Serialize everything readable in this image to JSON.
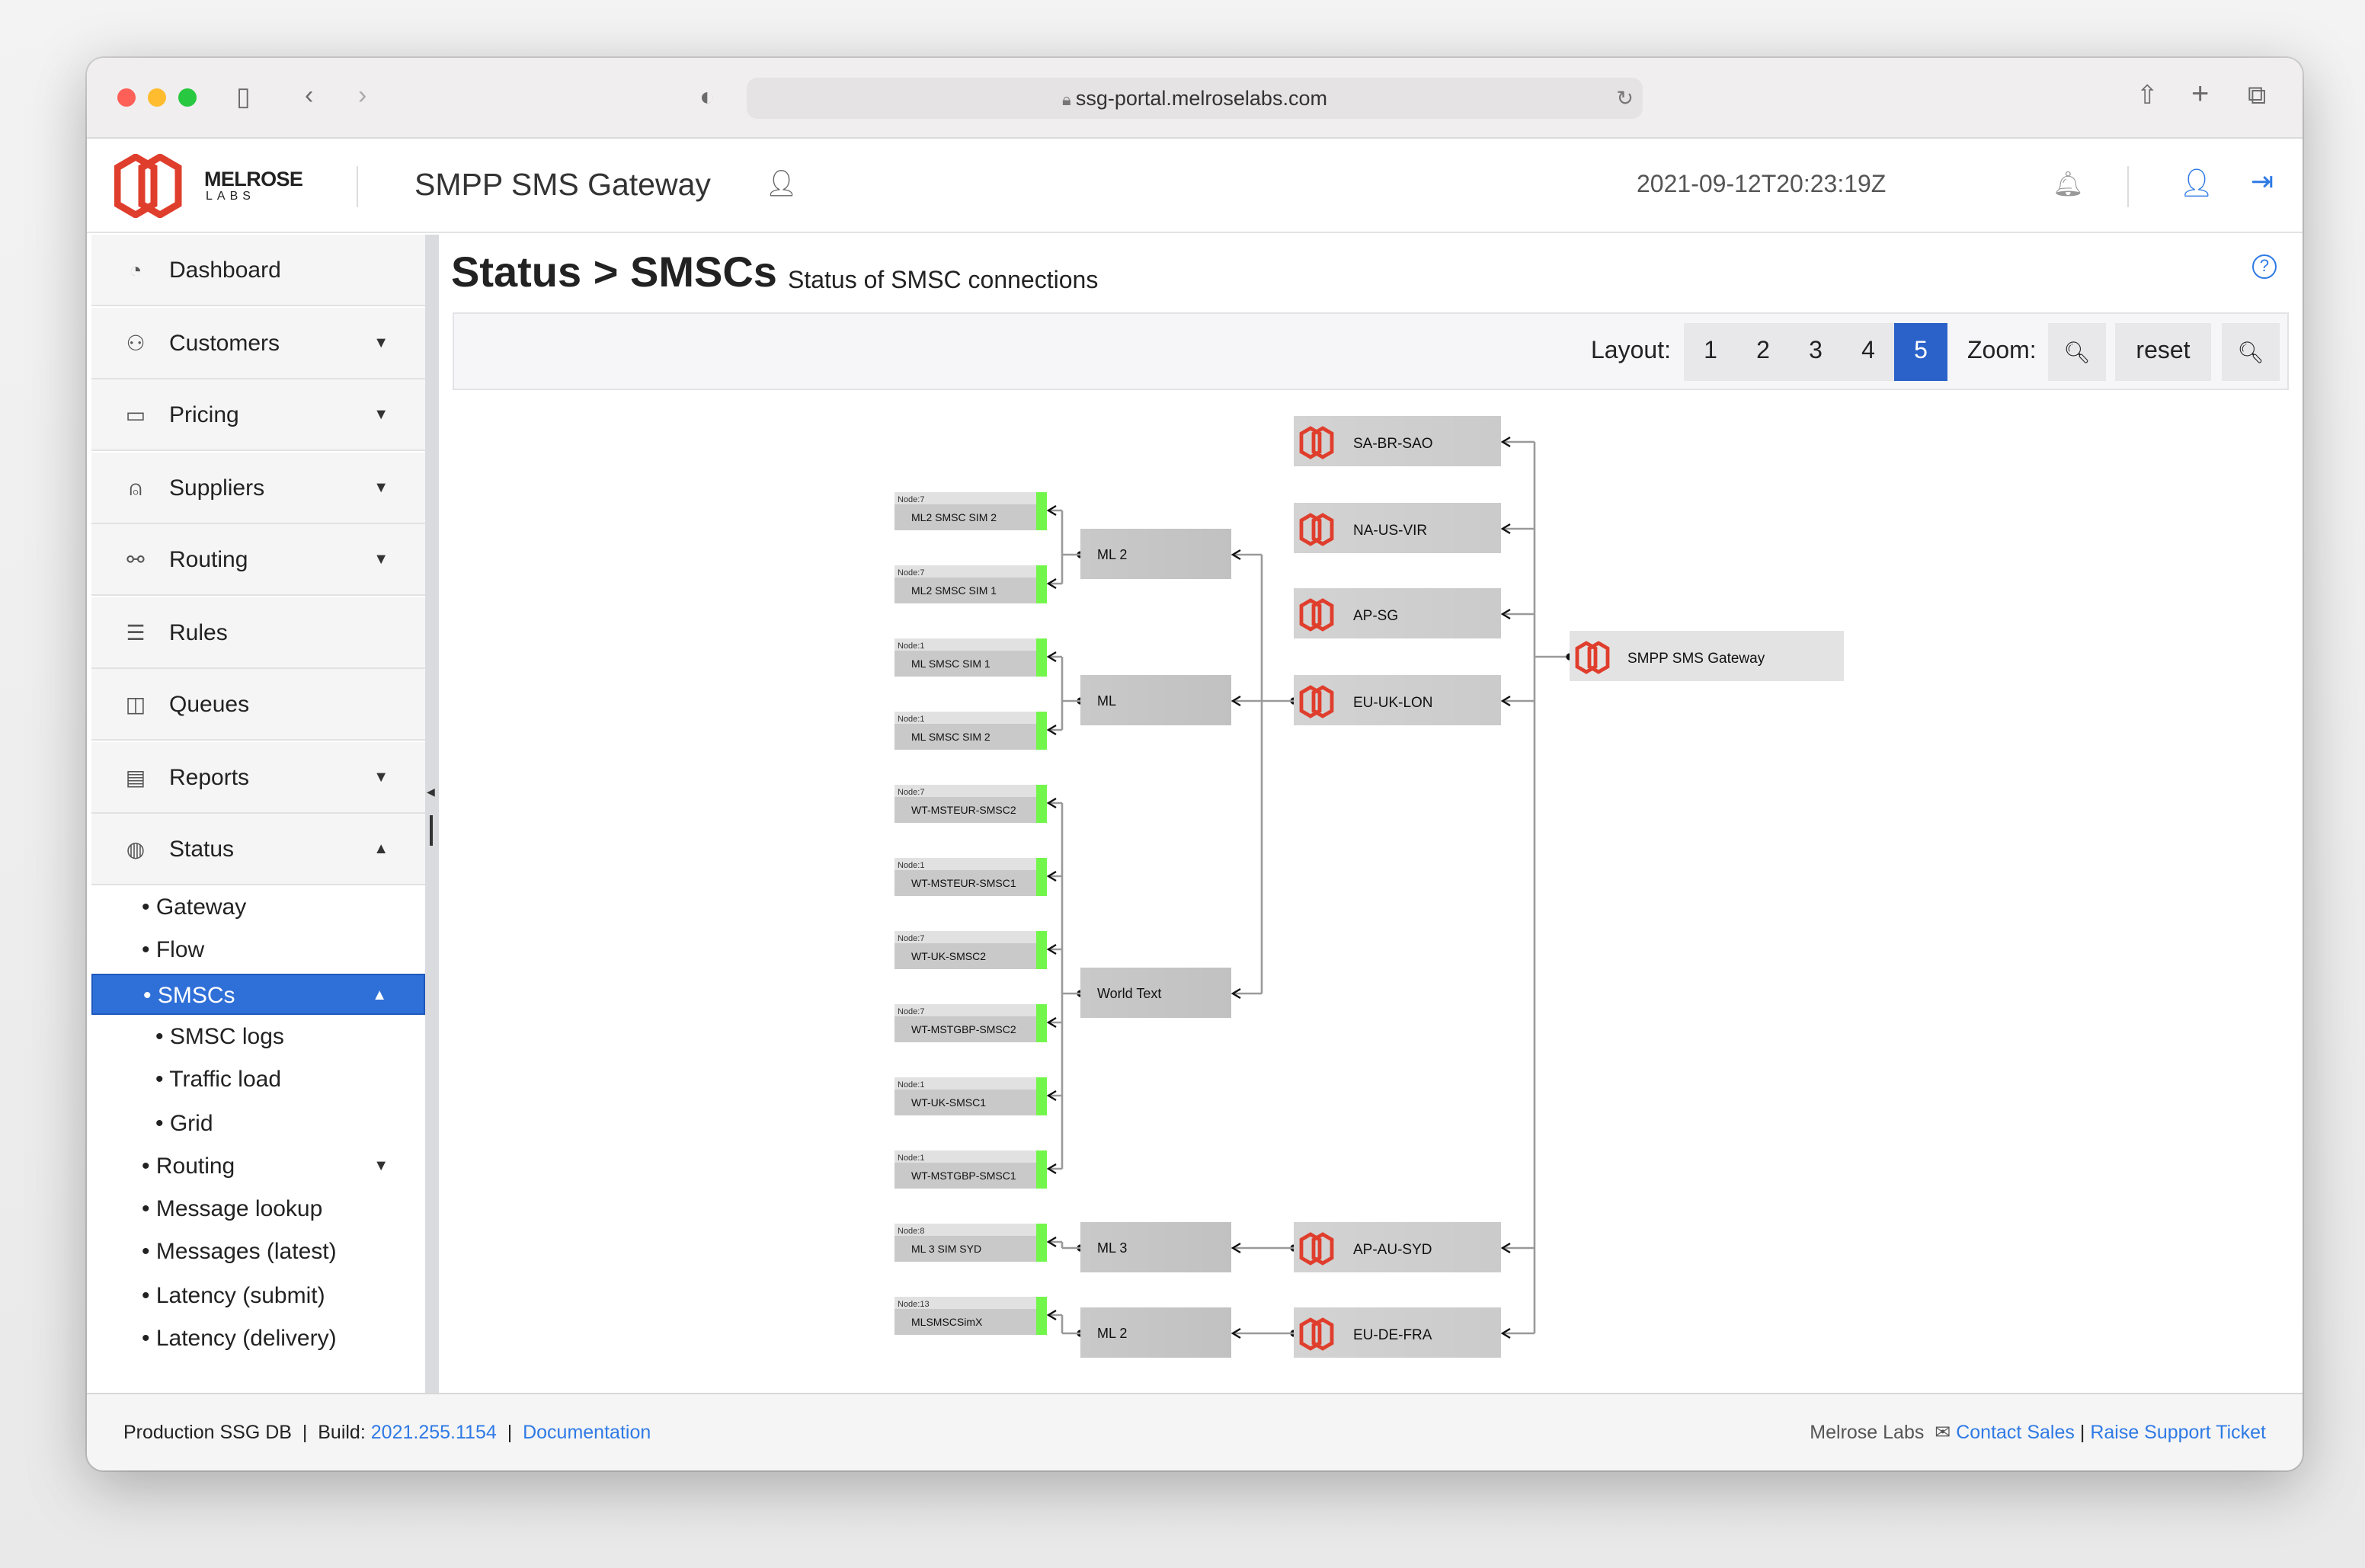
{
  "browser": {
    "url": "ssg-portal.melroselabs.com"
  },
  "header": {
    "logo_top": "MELROSE",
    "logo_bottom": "LABS",
    "app_title": "SMPP SMS Gateway",
    "timestamp": "2021-09-12T20:23:19Z"
  },
  "sidebar": {
    "items": [
      {
        "label": "Dashboard",
        "icon": "dashboard-icon",
        "caret": ""
      },
      {
        "label": "Customers",
        "icon": "customers-icon",
        "caret": "▼"
      },
      {
        "label": "Pricing",
        "icon": "pricing-icon",
        "caret": "▼"
      },
      {
        "label": "Suppliers",
        "icon": "suppliers-icon",
        "caret": "▼"
      },
      {
        "label": "Routing",
        "icon": "routing-icon",
        "caret": "▼"
      },
      {
        "label": "Rules",
        "icon": "rules-icon",
        "caret": ""
      },
      {
        "label": "Queues",
        "icon": "queues-icon",
        "caret": ""
      },
      {
        "label": "Reports",
        "icon": "reports-icon",
        "caret": "▼"
      },
      {
        "label": "Status",
        "icon": "status-icon",
        "caret": "▲"
      }
    ],
    "status_sub": [
      {
        "label": "• Gateway",
        "indent": 0,
        "caret": ""
      },
      {
        "label": "• Flow",
        "indent": 0,
        "caret": ""
      },
      {
        "label": "• SMSCs",
        "indent": 0,
        "caret": "▲",
        "active": true
      },
      {
        "label": "• SMSC logs",
        "indent": 1,
        "caret": ""
      },
      {
        "label": "• Traffic load",
        "indent": 1,
        "caret": ""
      },
      {
        "label": "• Grid",
        "indent": 1,
        "caret": ""
      },
      {
        "label": "• Routing",
        "indent": 0,
        "caret": "▼"
      },
      {
        "label": "• Message lookup",
        "indent": 0,
        "caret": ""
      },
      {
        "label": "• Messages (latest)",
        "indent": 0,
        "caret": ""
      },
      {
        "label": "• Latency (submit)",
        "indent": 0,
        "caret": ""
      },
      {
        "label": "• Latency (delivery)",
        "indent": 0,
        "caret": ""
      }
    ]
  },
  "main": {
    "title": "Status > SMSCs",
    "subtitle": "Status of SMSC connections",
    "toolbar": {
      "layout_label": "Layout:",
      "layouts": [
        "1",
        "2",
        "3",
        "4",
        "5"
      ],
      "active_layout": "5",
      "zoom_label": "Zoom:",
      "reset_label": "reset"
    }
  },
  "diagram": {
    "gateway": {
      "label": "SMPP SMS Gateway"
    },
    "regions": [
      "SA-BR-SAO",
      "NA-US-VIR",
      "AP-SG",
      "EU-UK-LON",
      "AP-AU-SYD",
      "EU-DE-FRA"
    ],
    "suppliers": [
      {
        "label": "ML 2",
        "region": "EU-UK-LON"
      },
      {
        "label": "ML",
        "region": "EU-UK-LON"
      },
      {
        "label": "World Text",
        "region": "EU-UK-LON"
      },
      {
        "label": "ML 3",
        "region": "AP-AU-SYD"
      },
      {
        "label": "ML 2",
        "region": "EU-DE-FRA"
      }
    ],
    "smscs": [
      {
        "node": "Node:7",
        "label": "ML2 SMSC SIM 2",
        "supplier": 0,
        "status": "up"
      },
      {
        "node": "Node:7",
        "label": "ML2 SMSC SIM 1",
        "supplier": 0,
        "status": "up"
      },
      {
        "node": "Node:1",
        "label": "ML SMSC SIM 1",
        "supplier": 1,
        "status": "up"
      },
      {
        "node": "Node:1",
        "label": "ML SMSC SIM 2",
        "supplier": 1,
        "status": "up"
      },
      {
        "node": "Node:7",
        "label": "WT-MSTEUR-SMSC2",
        "supplier": 2,
        "status": "up"
      },
      {
        "node": "Node:1",
        "label": "WT-MSTEUR-SMSC1",
        "supplier": 2,
        "status": "up"
      },
      {
        "node": "Node:7",
        "label": "WT-UK-SMSC2",
        "supplier": 2,
        "status": "up"
      },
      {
        "node": "Node:7",
        "label": "WT-MSTGBP-SMSC2",
        "supplier": 2,
        "status": "up"
      },
      {
        "node": "Node:1",
        "label": "WT-UK-SMSC1",
        "supplier": 2,
        "status": "up"
      },
      {
        "node": "Node:1",
        "label": "WT-MSTGBP-SMSC1",
        "supplier": 2,
        "status": "up"
      },
      {
        "node": "Node:8",
        "label": "ML 3 SIM SYD",
        "supplier": 3,
        "status": "up"
      },
      {
        "node": "Node:13",
        "label": "MLSMSCSimX",
        "supplier": 4,
        "status": "up"
      }
    ],
    "colors": {
      "up": "#73f64c",
      "brand": "#e03e2d",
      "node": "#c9c9c9",
      "region": "#d3d3d3",
      "gateway": "#e3e3e3"
    }
  },
  "footer": {
    "db": "Production SSG DB",
    "sep": "|",
    "build_label": "Build:",
    "build": "2021.255.1154",
    "docs": "Documentation",
    "company": "Melrose Labs",
    "contact": "Contact Sales",
    "support": "Raise Support Ticket"
  },
  "colors": {
    "accent": "#2f6fd8",
    "link": "#2f7ae5"
  }
}
